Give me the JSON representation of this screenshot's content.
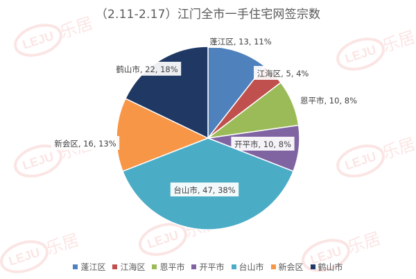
{
  "chart_data": {
    "type": "pie",
    "title": "（2.11-2.17）江门全市一手住宅网签宗数",
    "slices": [
      {
        "name": "蓬江区",
        "value": 13,
        "percent": "11%",
        "label": "蓬江区, 13, 11%",
        "color": "#4F81BD"
      },
      {
        "name": "江海区",
        "value": 5,
        "percent": "4%",
        "label": "江海区, 5, 4%",
        "color": "#C0504D"
      },
      {
        "name": "恩平市",
        "value": 10,
        "percent": "8%",
        "label": "恩平市, 10, 8%",
        "color": "#9BBB59"
      },
      {
        "name": "开平市",
        "value": 10,
        "percent": "8%",
        "label": "开平市, 10, 8%",
        "color": "#8064A2"
      },
      {
        "name": "台山市",
        "value": 47,
        "percent": "38%",
        "label": "台山市, 47, 38%",
        "color": "#4BACC6"
      },
      {
        "name": "新会区",
        "value": 16,
        "percent": "13%",
        "label": "新会区, 16, 13%",
        "color": "#F79646"
      },
      {
        "name": "鹤山市",
        "value": 22,
        "percent": "18%",
        "label": "鹤山市, 22, 18%",
        "color": "#1F3864"
      }
    ],
    "legend_position": "bottom"
  },
  "watermark": {
    "logo_text": "LEJU",
    "brand_text": "乐居"
  }
}
